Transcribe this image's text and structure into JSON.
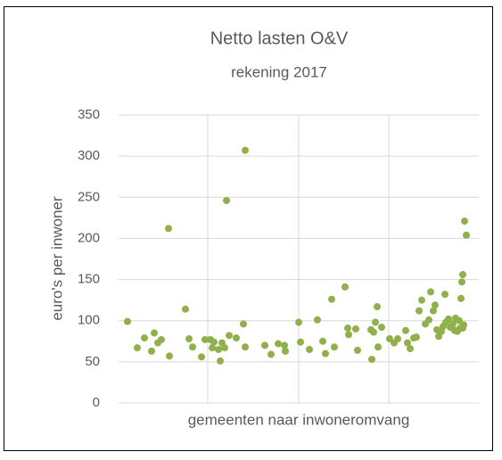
{
  "chart_data": {
    "type": "scatter",
    "title": "Netto lasten O&V",
    "subtitle": "rekening 2017",
    "y_label": "euro's per inwoner",
    "x_label": "gemeenten naar inwoneromvang",
    "color": "#8fb04a",
    "grid": true,
    "xlim": [
      0,
      404
    ],
    "xticks": [
      100,
      202,
      303
    ],
    "ylim": [
      0,
      350
    ],
    "yticks": [
      0,
      50,
      100,
      150,
      200,
      250,
      300,
      350
    ],
    "x": [
      10,
      21,
      29,
      37,
      40,
      44,
      48,
      56,
      57,
      75,
      79,
      83,
      93,
      97,
      103,
      105,
      107,
      112,
      114,
      116,
      119,
      121,
      124,
      132,
      140,
      142,
      142,
      164,
      171,
      179,
      186,
      187,
      202,
      204,
      214,
      223,
      229,
      232,
      239,
      242,
      254,
      257,
      258,
      266,
      268,
      283,
      284,
      286,
      288,
      290,
      291,
      295,
      304,
      309,
      313,
      322,
      324,
      327,
      331,
      334,
      337,
      340,
      344,
      348,
      350,
      353,
      355,
      357,
      359,
      362,
      364,
      366,
      367,
      370,
      372,
      375,
      377,
      378,
      380,
      382,
      383,
      384,
      385,
      386,
      387,
      388,
      390,
      386
    ],
    "y": [
      99,
      67,
      79,
      63,
      85,
      73,
      77,
      212,
      57,
      114,
      78,
      68,
      56,
      77,
      77,
      67,
      74,
      65,
      51,
      73,
      67,
      246,
      82,
      79,
      96,
      307,
      68,
      70,
      59,
      72,
      70,
      63,
      98,
      74,
      65,
      101,
      75,
      60,
      126,
      68,
      141,
      91,
      83,
      90,
      64,
      89,
      53,
      86,
      98,
      117,
      68,
      92,
      78,
      73,
      78,
      88,
      73,
      66,
      79,
      80,
      112,
      125,
      96,
      101,
      135,
      112,
      119,
      89,
      81,
      87,
      93,
      132,
      98,
      102,
      92,
      96,
      88,
      103,
      87,
      100,
      91,
      127,
      147,
      156,
      95,
      221,
      204,
      91
    ]
  }
}
